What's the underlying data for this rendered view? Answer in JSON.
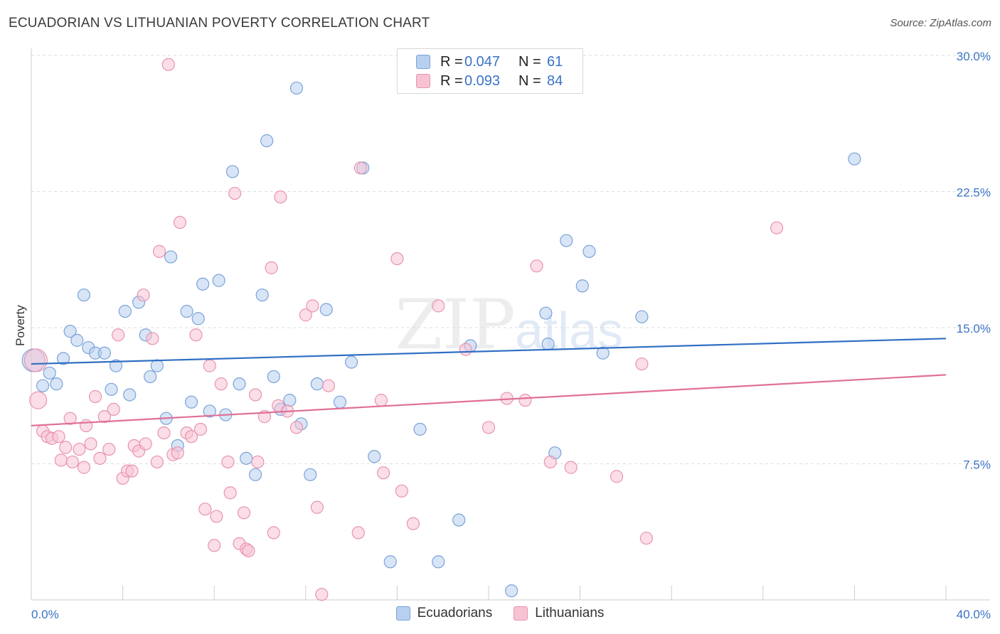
{
  "header": {
    "title": "ECUADORIAN VS LITHUANIAN POVERTY CORRELATION CHART",
    "source": "Source: ZipAtlas.com"
  },
  "watermark": {
    "zip": "ZIP",
    "atlas": "atlas"
  },
  "legend_top": {
    "rows": [
      {
        "r_label": "R = ",
        "r_value": "0.047",
        "n_label": "N = ",
        "n_value": "61"
      },
      {
        "r_label": "R = ",
        "r_value": "0.093",
        "n_label": "N = ",
        "n_value": "84"
      }
    ]
  },
  "legend_bottom": {
    "items": [
      "Ecuadorians",
      "Lithuanians"
    ]
  },
  "colors": {
    "blue_fill": "#b8d0f0",
    "blue_stroke": "#7aa3d8",
    "blue_line": "#2f6fc4",
    "pink_fill": "#f7c3d3",
    "pink_stroke": "#e894b0",
    "pink_line": "#e07099",
    "tick_label": "#3b73c5",
    "grid": "#dddddd"
  },
  "chart_data": {
    "type": "scatter",
    "ylabel": "Poverty",
    "xlabel": "",
    "xlim": [
      0,
      40
    ],
    "ylim": [
      0,
      30
    ],
    "x_tick_labels": [
      {
        "value": 0,
        "label": "0.0%"
      },
      {
        "value": 40,
        "label": "40.0%"
      }
    ],
    "y_tick_labels": [
      {
        "value": 7.5,
        "label": "7.5%"
      },
      {
        "value": 15,
        "label": "15.0%"
      },
      {
        "value": 22.5,
        "label": "22.5%"
      },
      {
        "value": 30,
        "label": "30.0%"
      }
    ],
    "grid": true,
    "series": [
      {
        "name": "Ecuadorians",
        "trend": [
          [
            0,
            13.0
          ],
          [
            40,
            14.4
          ]
        ],
        "points": [
          [
            0.1,
            13.2,
            3
          ],
          [
            0.5,
            11.8,
            1
          ],
          [
            0.8,
            12.5,
            1
          ],
          [
            1.1,
            11.9,
            1
          ],
          [
            1.4,
            13.3,
            1
          ],
          [
            1.7,
            14.8,
            1
          ],
          [
            2.0,
            14.3,
            1
          ],
          [
            2.3,
            16.8,
            1
          ],
          [
            2.5,
            13.9,
            1
          ],
          [
            2.8,
            13.6,
            1
          ],
          [
            3.2,
            13.6,
            1
          ],
          [
            3.5,
            11.6,
            1
          ],
          [
            3.7,
            12.9,
            1
          ],
          [
            4.1,
            15.9,
            1
          ],
          [
            4.3,
            11.3,
            1
          ],
          [
            4.7,
            16.4,
            1
          ],
          [
            5.0,
            14.6,
            1
          ],
          [
            5.2,
            12.3,
            1
          ],
          [
            5.5,
            12.9,
            1
          ],
          [
            5.9,
            10.0,
            1
          ],
          [
            6.1,
            18.9,
            1
          ],
          [
            6.4,
            8.5,
            1
          ],
          [
            6.8,
            15.9,
            1
          ],
          [
            7.0,
            10.9,
            1
          ],
          [
            7.3,
            15.5,
            1
          ],
          [
            7.5,
            17.4,
            1
          ],
          [
            7.8,
            10.4,
            1
          ],
          [
            8.2,
            17.6,
            1
          ],
          [
            8.5,
            10.2,
            1
          ],
          [
            8.8,
            23.6,
            1
          ],
          [
            9.1,
            11.9,
            1
          ],
          [
            9.4,
            7.8,
            1
          ],
          [
            9.8,
            6.9,
            1
          ],
          [
            10.1,
            16.8,
            1
          ],
          [
            10.3,
            25.3,
            1
          ],
          [
            10.6,
            12.3,
            1
          ],
          [
            10.9,
            10.5,
            1
          ],
          [
            11.3,
            11.0,
            1
          ],
          [
            11.6,
            28.2,
            1
          ],
          [
            11.8,
            9.7,
            1
          ],
          [
            12.2,
            6.9,
            1
          ],
          [
            12.5,
            11.9,
            1
          ],
          [
            12.9,
            16.0,
            1
          ],
          [
            13.5,
            10.9,
            1
          ],
          [
            14.0,
            13.1,
            1
          ],
          [
            14.5,
            23.8,
            1
          ],
          [
            15.0,
            7.9,
            1
          ],
          [
            15.7,
            2.1,
            1
          ],
          [
            17.0,
            9.4,
            1
          ],
          [
            17.8,
            2.1,
            1
          ],
          [
            18.7,
            4.4,
            1
          ],
          [
            19.2,
            14.0,
            1
          ],
          [
            21.0,
            0.5,
            1
          ],
          [
            22.5,
            15.8,
            1
          ],
          [
            22.6,
            14.1,
            1
          ],
          [
            22.9,
            8.1,
            1
          ],
          [
            23.4,
            19.8,
            1
          ],
          [
            24.1,
            17.3,
            1
          ],
          [
            24.4,
            19.2,
            1
          ],
          [
            25.0,
            13.6,
            1
          ],
          [
            26.7,
            15.6,
            1
          ],
          [
            36.0,
            24.3,
            1
          ]
        ]
      },
      {
        "name": "Lithuanians",
        "trend": [
          [
            0,
            9.6
          ],
          [
            40,
            12.4
          ]
        ],
        "points": [
          [
            0.2,
            13.2,
            3
          ],
          [
            0.3,
            11.0,
            2
          ],
          [
            0.5,
            9.3,
            1
          ],
          [
            0.7,
            9.0,
            1
          ],
          [
            0.9,
            8.9,
            1
          ],
          [
            1.2,
            9.0,
            1
          ],
          [
            1.3,
            7.7,
            1
          ],
          [
            1.5,
            8.4,
            1
          ],
          [
            1.7,
            10.0,
            1
          ],
          [
            1.8,
            7.6,
            1
          ],
          [
            2.1,
            8.3,
            1
          ],
          [
            2.3,
            7.3,
            1
          ],
          [
            2.4,
            9.6,
            1
          ],
          [
            2.6,
            8.6,
            1
          ],
          [
            2.8,
            11.2,
            1
          ],
          [
            3.0,
            7.8,
            1
          ],
          [
            3.2,
            10.1,
            1
          ],
          [
            3.4,
            8.3,
            1
          ],
          [
            3.6,
            10.5,
            1
          ],
          [
            3.8,
            14.6,
            1
          ],
          [
            4.0,
            6.7,
            1
          ],
          [
            4.2,
            7.1,
            1
          ],
          [
            4.4,
            7.1,
            1
          ],
          [
            4.5,
            8.5,
            1
          ],
          [
            4.7,
            8.2,
            1
          ],
          [
            4.9,
            16.8,
            1
          ],
          [
            5.0,
            8.6,
            1
          ],
          [
            5.3,
            14.4,
            1
          ],
          [
            5.5,
            7.6,
            1
          ],
          [
            5.6,
            19.2,
            1
          ],
          [
            5.8,
            9.2,
            1
          ],
          [
            6.0,
            29.5,
            1
          ],
          [
            6.2,
            8.0,
            1
          ],
          [
            6.4,
            8.1,
            1
          ],
          [
            6.5,
            20.8,
            1
          ],
          [
            6.8,
            9.2,
            1
          ],
          [
            7.0,
            9.0,
            1
          ],
          [
            7.2,
            14.6,
            1
          ],
          [
            7.4,
            9.4,
            1
          ],
          [
            7.6,
            5.0,
            1
          ],
          [
            7.8,
            12.9,
            1
          ],
          [
            8.0,
            3.0,
            1
          ],
          [
            8.1,
            4.6,
            1
          ],
          [
            8.3,
            11.9,
            1
          ],
          [
            8.6,
            7.6,
            1
          ],
          [
            8.7,
            5.9,
            1
          ],
          [
            8.9,
            22.4,
            1
          ],
          [
            9.1,
            3.1,
            1
          ],
          [
            9.3,
            4.8,
            1
          ],
          [
            9.4,
            2.8,
            1
          ],
          [
            9.5,
            2.7,
            1
          ],
          [
            9.8,
            11.3,
            1
          ],
          [
            9.9,
            7.6,
            1
          ],
          [
            10.2,
            10.1,
            1
          ],
          [
            10.5,
            18.3,
            1
          ],
          [
            10.6,
            3.7,
            1
          ],
          [
            10.8,
            10.7,
            1
          ],
          [
            10.9,
            22.2,
            1
          ],
          [
            11.2,
            10.4,
            1
          ],
          [
            11.6,
            9.5,
            1
          ],
          [
            12.0,
            15.7,
            1
          ],
          [
            12.3,
            16.2,
            1
          ],
          [
            12.5,
            5.1,
            1
          ],
          [
            12.7,
            0.3,
            1
          ],
          [
            13.0,
            11.8,
            1
          ],
          [
            14.3,
            3.7,
            1
          ],
          [
            14.4,
            23.8,
            1
          ],
          [
            15.3,
            11.0,
            1
          ],
          [
            15.4,
            7.0,
            1
          ],
          [
            16.0,
            18.8,
            1
          ],
          [
            16.2,
            6.0,
            1
          ],
          [
            16.7,
            4.2,
            1
          ],
          [
            17.8,
            16.2,
            1
          ],
          [
            19.0,
            13.8,
            1
          ],
          [
            20.0,
            9.5,
            1
          ],
          [
            20.8,
            11.1,
            1
          ],
          [
            21.6,
            11.0,
            1
          ],
          [
            22.1,
            18.4,
            1
          ],
          [
            22.7,
            7.6,
            1
          ],
          [
            23.6,
            7.3,
            1
          ],
          [
            25.6,
            6.8,
            1
          ],
          [
            26.7,
            13.0,
            1
          ],
          [
            26.9,
            3.4,
            1
          ],
          [
            32.6,
            20.5,
            1
          ]
        ]
      }
    ]
  }
}
